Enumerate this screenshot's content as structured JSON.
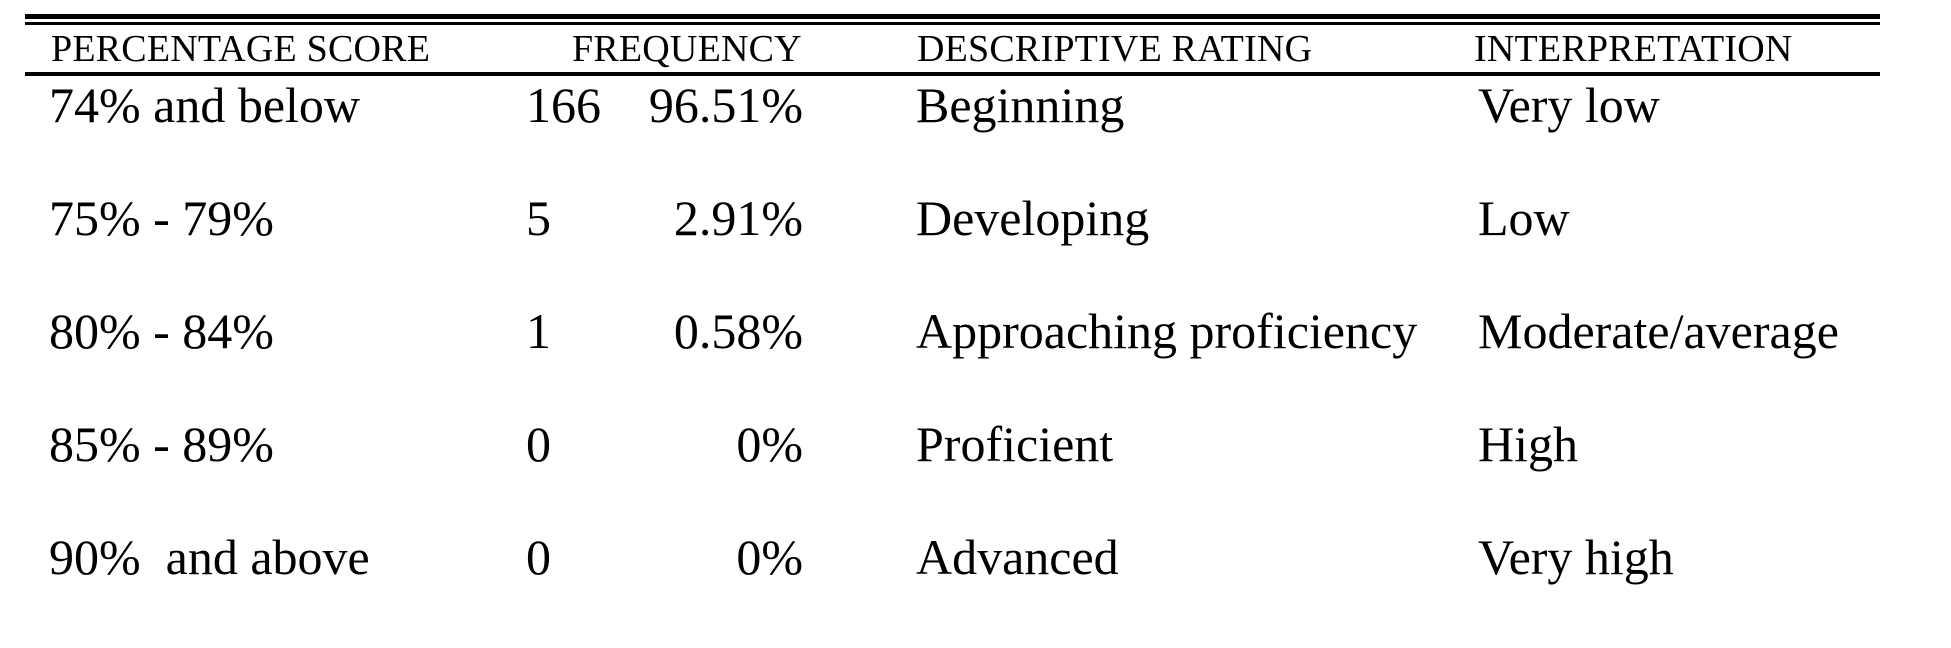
{
  "table": {
    "headers": {
      "score": "PERCENTAGE SCORE",
      "frequency": "FREQUENCY",
      "rating": "DESCRIPTIVE RATING",
      "interpretation": "INTERPRETATION"
    },
    "rows": [
      {
        "score": "74% and below",
        "count": "166",
        "pct": "96.51%",
        "rating": "Beginning",
        "interpretation": "Very low"
      },
      {
        "score": "75% - 79%",
        "count": "5",
        "pct": "2.91%",
        "rating": "Developing",
        "interpretation": "Low"
      },
      {
        "score": "80% - 84%",
        "count": "1",
        "pct": "0.58%",
        "rating": "Approaching proficiency",
        "interpretation": "Moderate/average"
      },
      {
        "score": "85% - 89%",
        "count": "0",
        "pct": "0%",
        "rating": "Proficient",
        "interpretation": "High"
      },
      {
        "score": "90%  and above",
        "count": "0",
        "pct": "0%",
        "rating": "Advanced",
        "interpretation": "Very high"
      }
    ]
  },
  "colors": {
    "text": "#000000",
    "background": "#ffffff",
    "rule": "#000000"
  }
}
